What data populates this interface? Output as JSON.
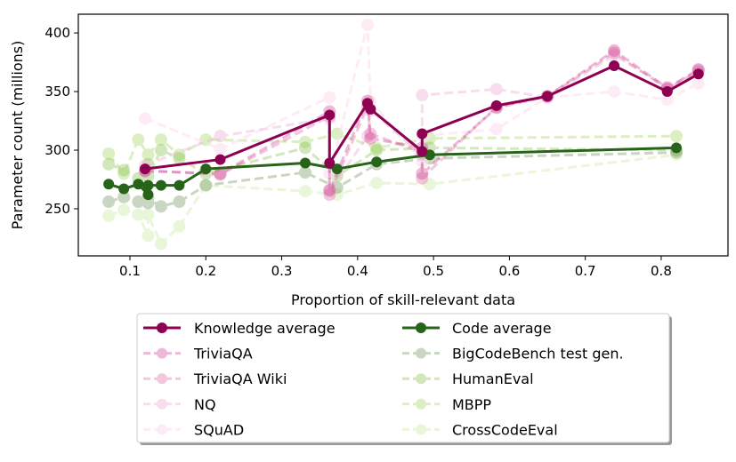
{
  "chart_data": {
    "type": "line",
    "title": "",
    "xlabel": "Proportion of skill-relevant data",
    "ylabel": "Parameter count (millions)",
    "xlim": [
      0.032,
      0.888
    ],
    "ylim": [
      209.8,
      416
    ],
    "xticks": [
      "0.1",
      "0.2",
      "0.3",
      "0.4",
      "0.5",
      "0.6",
      "0.7",
      "0.8"
    ],
    "yticks": [
      "250",
      "300",
      "350",
      "400"
    ],
    "grid": false,
    "legend_placement": "below",
    "series": [
      {
        "name": "Knowledge average",
        "group": "knowledge",
        "color": "#8e0152",
        "style": "solid",
        "opacity": 1,
        "x": [
          0.12,
          0.219,
          0.363,
          0.363,
          0.413,
          0.417,
          0.485,
          0.485,
          0.583,
          0.65,
          0.738,
          0.808,
          0.849
        ],
        "y": [
          284,
          292,
          330,
          289,
          340,
          335,
          299,
          314,
          338,
          346,
          372,
          350,
          365
        ]
      },
      {
        "name": "TriviaQA",
        "group": "knowledge",
        "color": "#c51b7d",
        "style": "dashed",
        "opacity": 0.3,
        "x": [
          0.12,
          0.219,
          0.363,
          0.363,
          0.413,
          0.417,
          0.485,
          0.485,
          0.583,
          0.65,
          0.738,
          0.808,
          0.849
        ],
        "y": [
          282,
          280,
          333,
          266,
          342,
          310,
          302,
          280,
          336,
          346,
          385,
          353,
          369
        ]
      },
      {
        "name": "TriviaQA Wiki",
        "group": "knowledge",
        "color": "#de77ae",
        "style": "dashed",
        "opacity": 0.4,
        "x": [
          0.12,
          0.219,
          0.363,
          0.363,
          0.413,
          0.417,
          0.485,
          0.485,
          0.583,
          0.65,
          0.738,
          0.808,
          0.849
        ],
        "y": [
          283,
          279,
          329,
          262,
          337,
          314,
          298,
          276,
          337,
          346,
          383,
          352,
          368
        ]
      },
      {
        "name": "NQ",
        "group": "knowledge",
        "color": "#f1b6da",
        "style": "dashed",
        "opacity": 0.45,
        "x": [
          0.12,
          0.219,
          0.363,
          0.363,
          0.413,
          0.417,
          0.485,
          0.485,
          0.583,
          0.65,
          0.738,
          0.808,
          0.849
        ],
        "y": [
          287,
          312,
          327,
          265,
          312,
          334,
          296,
          347,
          352,
          345,
          381,
          354,
          366
        ]
      },
      {
        "name": "SQuAD",
        "group": "knowledge",
        "color": "#fde0ef",
        "style": "dashed",
        "opacity": 0.6,
        "x": [
          0.12,
          0.219,
          0.363,
          0.363,
          0.413,
          0.417,
          0.485,
          0.485,
          0.583,
          0.65,
          0.738,
          0.808,
          0.849
        ],
        "y": [
          327,
          301,
          345,
          280,
          407,
          342,
          290,
          312,
          318,
          345,
          350,
          343,
          357
        ]
      },
      {
        "name": "Code average",
        "group": "code",
        "color": "#276419",
        "style": "solid",
        "opacity": 1,
        "x": [
          0.072,
          0.092,
          0.111,
          0.124,
          0.124,
          0.141,
          0.165,
          0.2,
          0.331,
          0.373,
          0.425,
          0.495,
          0.82
        ],
        "y": [
          271,
          267,
          271,
          262,
          270,
          270,
          270,
          284,
          289,
          284,
          290,
          296,
          302
        ]
      },
      {
        "name": "BigCodeBench test gen.",
        "group": "code",
        "color": "#4d7a3a",
        "style": "dashed",
        "opacity": 0.3,
        "x": [
          0.072,
          0.092,
          0.111,
          0.124,
          0.124,
          0.141,
          0.165,
          0.2,
          0.331,
          0.373,
          0.425,
          0.495,
          0.82
        ],
        "y": [
          256,
          260,
          256,
          255,
          259,
          252,
          256,
          270,
          281,
          268,
          288,
          293,
          298
        ]
      },
      {
        "name": "HumanEval",
        "group": "code",
        "color": "#7fbc41",
        "style": "dashed",
        "opacity": 0.35,
        "x": [
          0.072,
          0.092,
          0.111,
          0.124,
          0.124,
          0.141,
          0.165,
          0.2,
          0.331,
          0.373,
          0.425,
          0.495,
          0.82
        ],
        "y": [
          288,
          283,
          276,
          288,
          278,
          300,
          293,
          280,
          302,
          278,
          300,
          302,
          300
        ]
      },
      {
        "name": "MBPP",
        "group": "code",
        "color": "#b8e186",
        "style": "dashed",
        "opacity": 0.5,
        "x": [
          0.072,
          0.092,
          0.111,
          0.124,
          0.124,
          0.141,
          0.165,
          0.2,
          0.331,
          0.373,
          0.425,
          0.495,
          0.82
        ],
        "y": [
          297,
          280,
          309,
          296,
          296,
          309,
          296,
          309,
          307,
          314,
          302,
          310,
          312
        ]
      },
      {
        "name": "CrossCodeEval",
        "group": "code",
        "color": "#e6f5d0",
        "style": "dashed",
        "opacity": 0.8,
        "x": [
          0.072,
          0.092,
          0.111,
          0.124,
          0.124,
          0.141,
          0.165,
          0.2,
          0.331,
          0.373,
          0.425,
          0.495,
          0.82
        ],
        "y": [
          244,
          249,
          245,
          227,
          245,
          220,
          235,
          270,
          265,
          262,
          272,
          271,
          296
        ]
      }
    ]
  }
}
